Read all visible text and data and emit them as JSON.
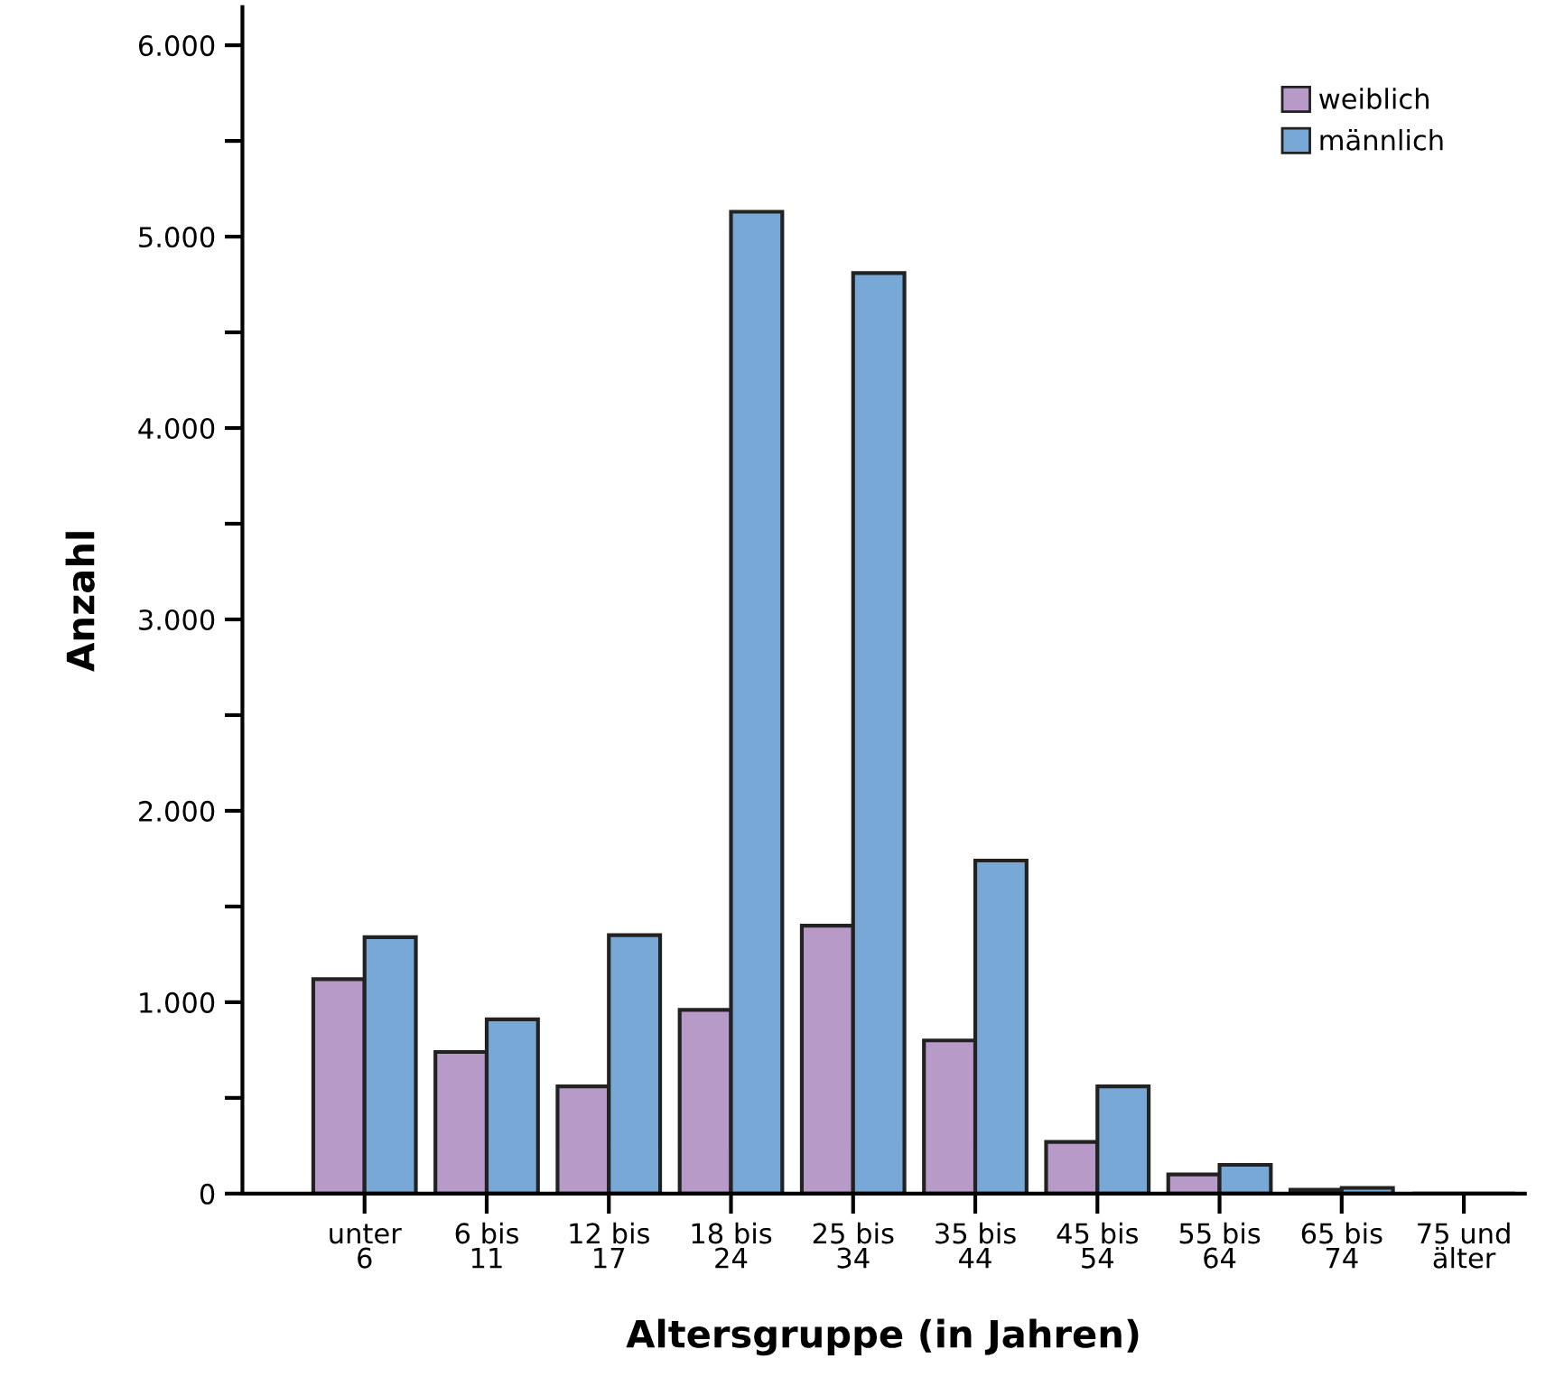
{
  "chart_data": {
    "type": "bar",
    "xlabel": "Altersgruppe (in Jahren)",
    "ylabel": "Anzahl",
    "categories": [
      "unter\n6",
      "6 bis\n11",
      "12 bis\n17",
      "18 bis\n24",
      "25 bis\n34",
      "35 bis\n44",
      "45 bis\n54",
      "55 bis\n64",
      "65 bis\n74",
      "75 und\nälter"
    ],
    "series": [
      {
        "name": "weiblich",
        "color": "#b89ac8",
        "values": [
          1120,
          740,
          560,
          960,
          1400,
          800,
          270,
          100,
          20,
          null
        ]
      },
      {
        "name": "männlich",
        "color": "#78a8d6",
        "values": [
          1340,
          910,
          1350,
          5130,
          4810,
          1740,
          560,
          150,
          30,
          null
        ]
      }
    ],
    "ylim": [
      0,
      6200
    ],
    "yticks": [
      {
        "value": 0,
        "label": "0"
      },
      {
        "value": 500,
        "label": null
      },
      {
        "value": 1000,
        "label": "1.000"
      },
      {
        "value": 1500,
        "label": null
      },
      {
        "value": 2000,
        "label": "2.000"
      },
      {
        "value": 2500,
        "label": null
      },
      {
        "value": 3000,
        "label": "3.000"
      },
      {
        "value": 3500,
        "label": null
      },
      {
        "value": 4000,
        "label": "4.000"
      },
      {
        "value": 4500,
        "label": null
      },
      {
        "value": 5000,
        "label": "5.000"
      },
      {
        "value": 5500,
        "label": null
      },
      {
        "value": 6000,
        "label": "6.000"
      }
    ],
    "grid": false,
    "legend": "top right"
  }
}
